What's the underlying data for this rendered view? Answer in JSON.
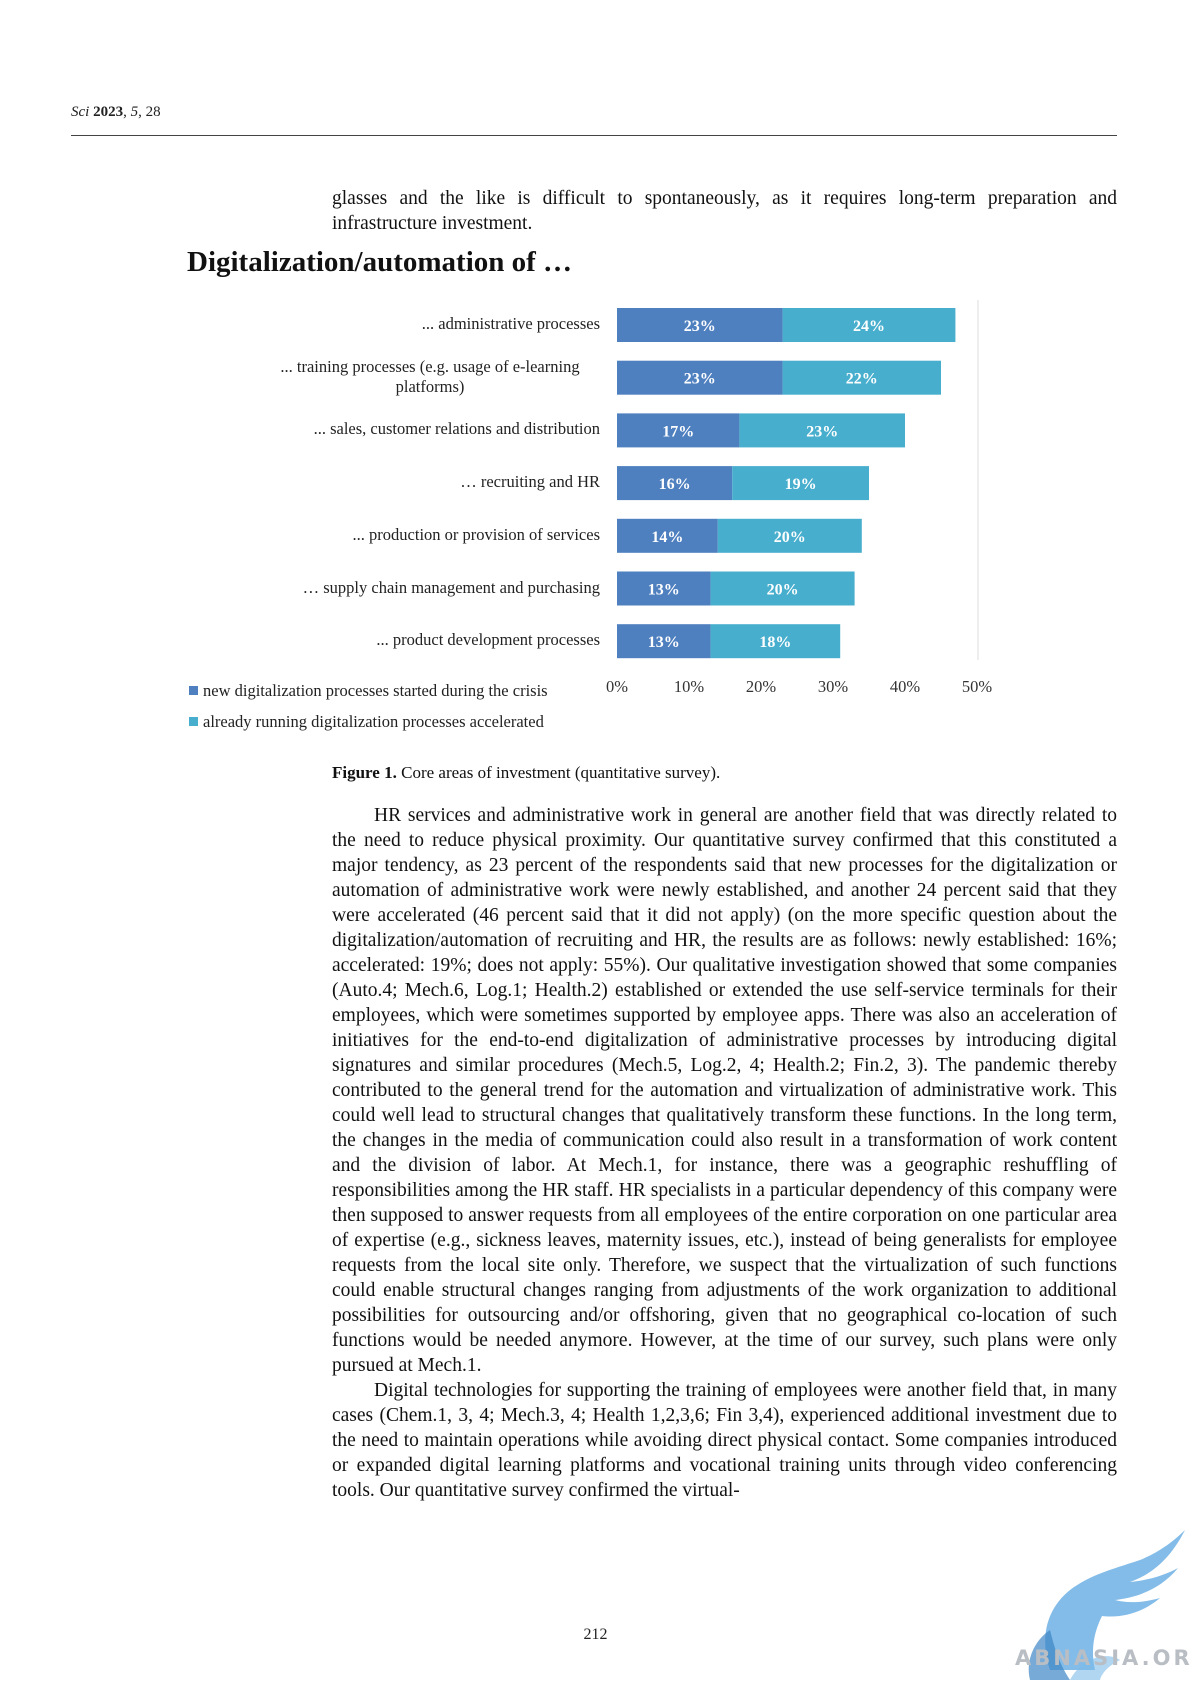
{
  "header": {
    "journal": "Sci",
    "year": "2023",
    "volume": "5",
    "article": "28"
  },
  "intro_paragraph": "glasses and the like is difficult to spontaneously, as it requires long-term preparation and infrastructure investment.",
  "figure_title": "Digitalization/automation of …",
  "chart_data": {
    "type": "bar",
    "orientation": "horizontal",
    "stacked": true,
    "title": "Digitalization/automation of …",
    "categories": [
      "... administrative processes",
      "... training processes (e.g. usage of e-learning platforms)",
      "... sales, customer relations and distribution",
      "… recruiting and HR",
      "... production or provision of services",
      "… supply chain management and purchasing",
      "... product development processes"
    ],
    "series": [
      {
        "name": "new digitalization processes started during the crisis",
        "color": "#4e7fbf",
        "values": [
          23,
          23,
          17,
          16,
          14,
          13,
          13
        ]
      },
      {
        "name": "already running digitalization processes accelerated",
        "color": "#48aece",
        "values": [
          24,
          22,
          23,
          19,
          20,
          20,
          18
        ]
      }
    ],
    "xticks": [
      "0%",
      "10%",
      "20%",
      "30%",
      "40%",
      "50%"
    ],
    "xlim": [
      0,
      50
    ],
    "data_labels": true,
    "legend_position": "bottom-left",
    "grid": false
  },
  "caption": {
    "label": "Figure 1.",
    "text": "Core areas of investment (quantitative survey)."
  },
  "paragraphs": [
    "HR services and administrative work in general are another field that was directly related to the need to reduce physical proximity. Our quantitative survey confirmed that this constituted a major tendency, as 23 percent of the respondents said that new processes for the digitalization or automation of administrative work were newly established, and another 24 percent said that they were accelerated (46 percent said that it did not apply) (on the more specific question about the digitalization/automation of recruiting and HR, the results are as follows: newly established: 16%; accelerated: 19%; does not apply: 55%). Our qualitative investigation showed that some companies (Auto.4; Mech.6, Log.1; Health.2) established or extended the use self-service terminals for their employees, which were sometimes supported by employee apps. There was also an acceleration of initiatives for the end-to-end digitalization of administrative processes by introducing digital signatures and similar procedures (Mech.5, Log.2, 4; Health.2; Fin.2, 3). The pandemic thereby contributed to the general trend for the automation and virtualization of administrative work. This could well lead to structural changes that qualitatively transform these functions. In the long term, the changes in the media of communication could also result in a transformation of work content and the division of labor. At Mech.1, for instance, there was a geographic reshuffling of responsibilities among the HR staff. HR specialists in a particular dependency of this company were then supposed to answer requests from all employees of the entire corporation on one particular area of expertise (e.g., sickness leaves, maternity issues, etc.), instead of being generalists for employee requests from the local site only. Therefore, we suspect that the virtualization of such functions could enable structural changes ranging from adjustments of the work organization to additional possibilities for outsourcing and/or offshoring, given that no geographical co-location of such functions would be needed anymore. However, at the time of our survey, such plans were only pursued at Mech.1.",
    "Digital technologies for supporting the training of employees were another field that, in many cases (Chem.1, 3, 4; Mech.3, 4; Health 1,2,3,6; Fin 3,4), experienced additional investment due to the need to maintain operations while avoiding direct physical contact. Some companies introduced or expanded digital learning platforms and vocational training units through video conferencing tools. Our quantitative survey confirmed the virtual-"
  ],
  "page_number": "212",
  "watermark": "ABNASIA.ORG"
}
